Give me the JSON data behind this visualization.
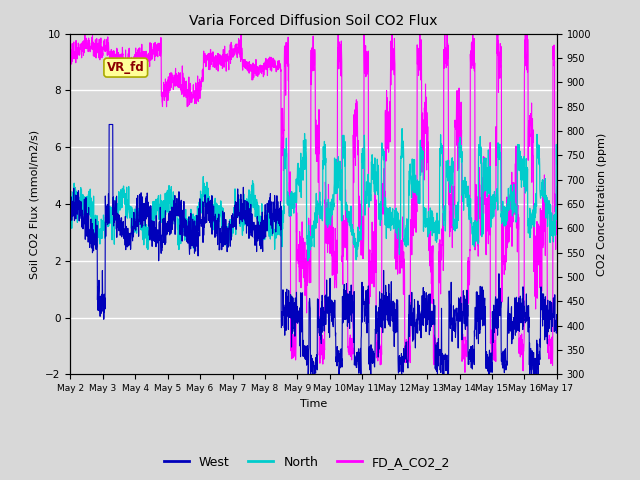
{
  "title": "Varia Forced Diffusion Soil CO2 Flux",
  "ylabel_left": "Soil CO2 Flux (mmol/m2/s)",
  "ylabel_right": "CO2 Concentration (ppm)",
  "xlabel": "Time",
  "ylim_left": [
    -2,
    10
  ],
  "ylim_right": [
    300,
    1000
  ],
  "yticks_left": [
    -2,
    0,
    2,
    4,
    6,
    8,
    10
  ],
  "yticks_right": [
    300,
    350,
    400,
    450,
    500,
    550,
    600,
    650,
    700,
    750,
    800,
    850,
    900,
    950,
    1000
  ],
  "bg_color": "#d8d8d8",
  "plot_bg_color": "#d8d8d8",
  "west_color": "#0000bb",
  "north_color": "#00cccc",
  "fd_color": "#ff00ff",
  "annotation_text": "VR_fd",
  "annotation_bg": "#ffff99",
  "annotation_border": "#aaaa00",
  "n_points": 2160,
  "days": 15,
  "seed": 42
}
